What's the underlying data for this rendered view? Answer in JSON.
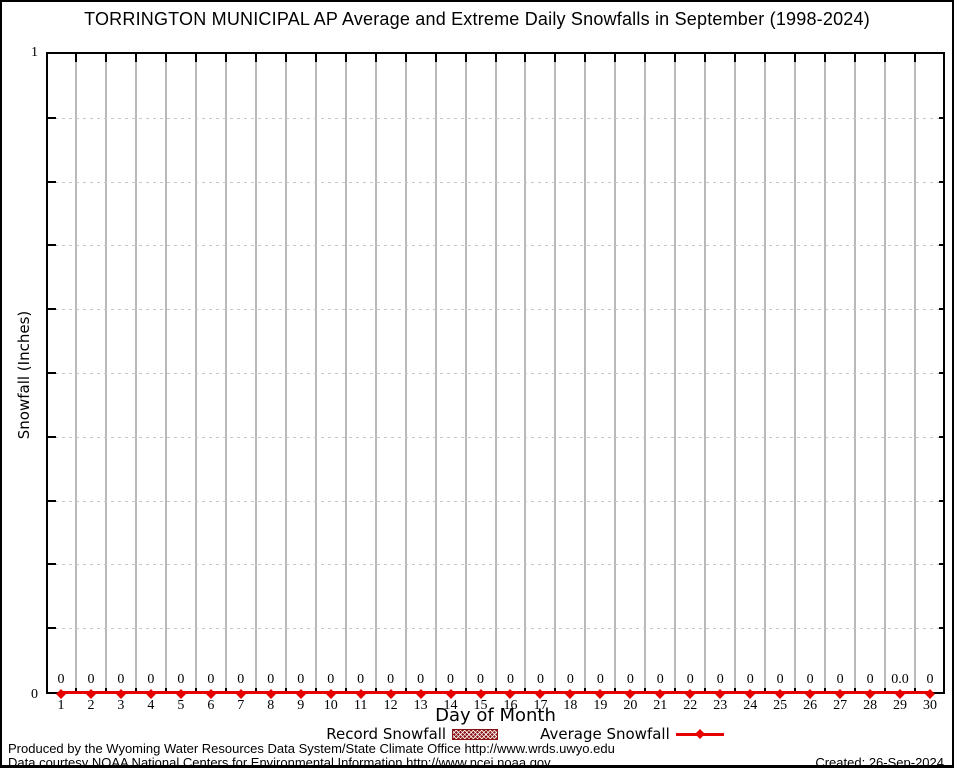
{
  "chart": {
    "title": "TORRINGTON MUNICIPAL AP Average and Extreme Daily Snowfalls in September (1998-2024)",
    "xlabel": "Day of Month",
    "ylabel": "Snowfall (Inches)",
    "y_tick_max": "1",
    "y_tick_min": "0"
  },
  "legend": {
    "record_label": "Record Snowfall",
    "average_label": "Average Snowfall"
  },
  "footer": {
    "line1": "Produced by the Wyoming Water Resources Data System/State Climate Office http://www.wrds.uwyo.edu",
    "line2": "Data courtesy NOAA National Centers for Environmental Information http://www.ncei.noaa.gov",
    "created": "Created: 26-Sep-2024"
  },
  "colors": {
    "average_line": "#e60000",
    "record_fill_dark_red": "#8b1212",
    "grid_vertical": "#b9b9b9",
    "grid_horizontal_dots": "#c6c6c6",
    "axis": "#000000"
  },
  "chart_data": {
    "type": "line",
    "title": "TORRINGTON MUNICIPAL AP Average and Extreme Daily Snowfalls in September (1998-2024)",
    "xlabel": "Day of Month",
    "ylabel": "Snowfall (Inches)",
    "ylim": [
      0,
      1
    ],
    "y_major_ticks": [
      0,
      1
    ],
    "y_minor_tick_interval": 0.1,
    "grid": {
      "vertical_solid_between_days": true,
      "horizontal_dotted_every": 0.1
    },
    "legend_position": "below-x-axis",
    "days": [
      1,
      2,
      3,
      4,
      5,
      6,
      7,
      8,
      9,
      10,
      11,
      12,
      13,
      14,
      15,
      16,
      17,
      18,
      19,
      20,
      21,
      22,
      23,
      24,
      25,
      26,
      27,
      28,
      29,
      30
    ],
    "series": [
      {
        "name": "Record Snowfall",
        "style": "hatched-bar-darkred",
        "values": [
          0,
          0,
          0,
          0,
          0,
          0,
          0,
          0,
          0,
          0,
          0,
          0,
          0,
          0,
          0,
          0,
          0,
          0,
          0,
          0,
          0,
          0,
          0,
          0,
          0,
          0,
          0,
          0,
          0,
          0
        ]
      },
      {
        "name": "Average Snowfall",
        "style": "red-line-diamond-markers",
        "values": [
          0,
          0,
          0,
          0,
          0,
          0,
          0,
          0,
          0,
          0,
          0,
          0,
          0,
          0,
          0,
          0,
          0,
          0,
          0,
          0,
          0,
          0,
          0,
          0,
          0,
          0,
          0,
          0,
          0,
          0
        ]
      }
    ],
    "point_labels": [
      "0",
      "0",
      "0",
      "0",
      "0",
      "0",
      "0",
      "0",
      "0",
      "0",
      "0",
      "0",
      "0",
      "0",
      "0",
      "0",
      "0",
      "0",
      "0",
      "0",
      "0",
      "0",
      "0",
      "0",
      "0",
      "0",
      "0",
      "0",
      "0.0",
      "0"
    ]
  }
}
